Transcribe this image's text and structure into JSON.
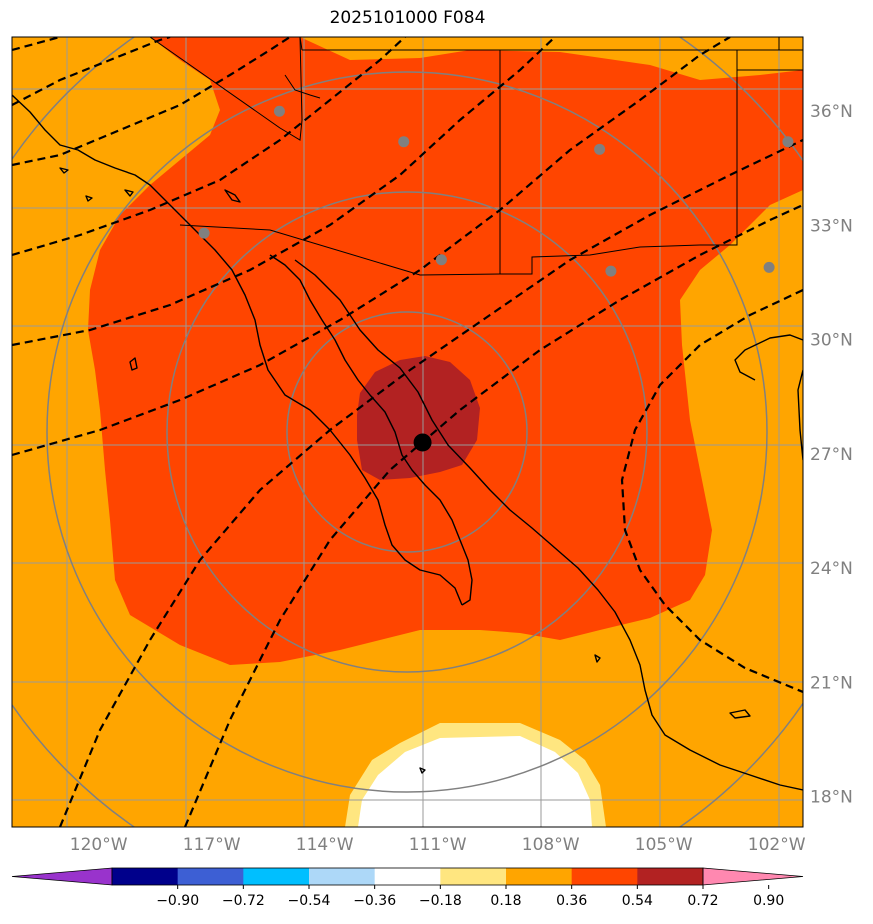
{
  "title": "2025101000 F084",
  "lat_labels": [
    {
      "lat": 36,
      "text": "36°N"
    },
    {
      "lat": 33,
      "text": "33°N"
    },
    {
      "lat": 30,
      "text": "30°N"
    },
    {
      "lat": 27,
      "text": "27°N"
    },
    {
      "lat": 24,
      "text": "24°N"
    },
    {
      "lat": 21,
      "text": "21°N"
    },
    {
      "lat": 18,
      "text": "18°N"
    }
  ],
  "lon_labels": [
    {
      "lon": -120,
      "text": "120°W"
    },
    {
      "lon": -117,
      "text": "117°W"
    },
    {
      "lon": -114,
      "text": "114°W"
    },
    {
      "lon": -111,
      "text": "111°W"
    },
    {
      "lon": -108,
      "text": "108°W"
    },
    {
      "lon": -105,
      "text": "105°W"
    },
    {
      "lon": -102,
      "text": "102°W"
    }
  ],
  "colorbar": {
    "colors": [
      "#9933cc",
      "#00008b",
      "#3d5fd4",
      "#00bfff",
      "#add8f8",
      "#ffffff",
      "#ffe680",
      "#ffa500",
      "#ff4500",
      "#b22222",
      "#ff88b0"
    ],
    "tick_labels": [
      "−0.90",
      "−0.72",
      "−0.54",
      "−0.36",
      "−0.18",
      "0.18",
      "0.36",
      "0.54",
      "0.72",
      "0.90"
    ]
  },
  "field_colors": {
    "background": "#ffa500",
    "outer": "#ff4500",
    "core": "#b22222",
    "light": "#ffe680",
    "none": "#ffffff"
  },
  "storm_center": {
    "lat": 27.3,
    "lon": -111.4
  },
  "stations": [
    {
      "lat": 36.0,
      "lon": -115.2
    },
    {
      "lat": 35.2,
      "lon": -111.9
    },
    {
      "lat": 35.0,
      "lon": -106.7
    },
    {
      "lat": 35.2,
      "lon": -101.7
    },
    {
      "lat": 32.8,
      "lon": -117.2
    },
    {
      "lat": 32.1,
      "lon": -110.9
    },
    {
      "lat": 31.8,
      "lon": -106.4
    },
    {
      "lat": 31.9,
      "lon": -102.2
    }
  ]
}
